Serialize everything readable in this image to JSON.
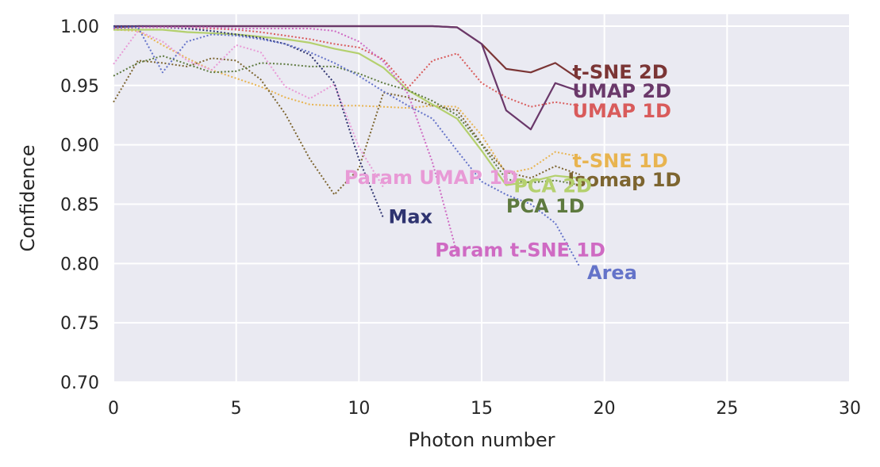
{
  "chart_data": {
    "type": "line",
    "title": "",
    "xlabel": "Photon number",
    "ylabel": "Confidence",
    "xlim": [
      0,
      30
    ],
    "ylim": [
      0.7,
      1.01
    ],
    "xticks": [
      0,
      5,
      10,
      15,
      20,
      25,
      30
    ],
    "yticks": [
      0.7,
      0.75,
      0.8,
      0.85,
      0.9,
      0.95,
      1.0
    ],
    "xtick_labels": [
      "0",
      "5",
      "10",
      "15",
      "20",
      "25",
      "30"
    ],
    "ytick_labels": [
      "0.70",
      "0.75",
      "0.80",
      "0.85",
      "0.90",
      "0.95",
      "1.00"
    ],
    "grid": true,
    "background": "#eaeaf2",
    "series": [
      {
        "name": "t-SNE 2D",
        "color": "#7b3535",
        "dash": "solid",
        "x": [
          0,
          1,
          2,
          3,
          4,
          5,
          6,
          7,
          8,
          9,
          10,
          11,
          12,
          13,
          14,
          15,
          16,
          17,
          18,
          19
        ],
        "y": [
          0.999,
          1.0,
          1.0,
          1.0,
          1.0,
          1.0,
          1.0,
          1.0,
          1.0,
          1.0,
          1.0,
          1.0,
          1.0,
          1.0,
          0.999,
          0.985,
          0.964,
          0.961,
          0.969,
          0.955
        ]
      },
      {
        "name": "UMAP 2D",
        "color": "#6a386a",
        "dash": "solid",
        "x": [
          0,
          1,
          2,
          3,
          4,
          5,
          6,
          7,
          8,
          9,
          10,
          11,
          12,
          13,
          14,
          15,
          16,
          17,
          18,
          19
        ],
        "y": [
          1.0,
          1.0,
          1.0,
          1.0,
          1.0,
          1.0,
          1.0,
          1.0,
          1.0,
          1.0,
          1.0,
          1.0,
          1.0,
          1.0,
          0.999,
          0.985,
          0.929,
          0.913,
          0.952,
          0.945
        ]
      },
      {
        "name": "UMAP 1D",
        "color": "#d95b5b",
        "dash": "dotted",
        "x": [
          0,
          1,
          2,
          3,
          4,
          5,
          6,
          7,
          8,
          9,
          10,
          11,
          12,
          13,
          14,
          15,
          16,
          17,
          18,
          19
        ],
        "y": [
          0.997,
          0.999,
          0.999,
          0.999,
          0.998,
          0.997,
          0.995,
          0.992,
          0.989,
          0.985,
          0.982,
          0.972,
          0.948,
          0.971,
          0.977,
          0.952,
          0.94,
          0.932,
          0.936,
          0.933
        ]
      },
      {
        "name": "t-SNE 1D",
        "color": "#e8b450",
        "dash": "dotted",
        "x": [
          0,
          1,
          2,
          3,
          4,
          5,
          6,
          7,
          8,
          9,
          10,
          11,
          12,
          13,
          14,
          15,
          16,
          17,
          18,
          19
        ],
        "y": [
          0.997,
          0.996,
          0.984,
          0.973,
          0.963,
          0.956,
          0.949,
          0.94,
          0.934,
          0.933,
          0.933,
          0.932,
          0.931,
          0.933,
          0.932,
          0.908,
          0.876,
          0.88,
          0.894,
          0.89
        ]
      },
      {
        "name": "Isomap 1D",
        "color": "#7d6530",
        "dash": "dotted",
        "x": [
          0,
          1,
          2,
          3,
          4,
          5,
          6,
          7,
          8,
          9,
          10,
          11,
          12,
          13,
          14,
          15,
          16,
          17,
          18,
          19
        ],
        "y": [
          0.936,
          0.971,
          0.969,
          0.966,
          0.973,
          0.971,
          0.955,
          0.926,
          0.888,
          0.858,
          0.88,
          0.944,
          0.94,
          0.933,
          0.929,
          0.901,
          0.877,
          0.872,
          0.882,
          0.875
        ]
      },
      {
        "name": "PCA 2D",
        "color": "#b4d06e",
        "dash": "solid",
        "x": [
          0,
          1,
          2,
          3,
          4,
          5,
          6,
          7,
          8,
          9,
          10,
          11,
          12,
          13,
          14,
          15,
          16,
          17,
          18,
          19
        ],
        "y": [
          0.997,
          0.997,
          0.997,
          0.995,
          0.994,
          0.993,
          0.991,
          0.989,
          0.986,
          0.981,
          0.977,
          0.965,
          0.946,
          0.934,
          0.922,
          0.895,
          0.866,
          0.869,
          0.874,
          0.872
        ]
      },
      {
        "name": "PCA 1D",
        "color": "#5e7a3f",
        "dash": "dotted",
        "x": [
          0,
          1,
          2,
          3,
          4,
          5,
          6,
          7,
          8,
          9,
          10,
          11,
          12,
          13,
          14,
          15,
          16,
          17,
          18,
          19
        ],
        "y": [
          0.958,
          0.969,
          0.975,
          0.968,
          0.961,
          0.962,
          0.969,
          0.968,
          0.966,
          0.966,
          0.96,
          0.952,
          0.946,
          0.937,
          0.925,
          0.9,
          0.871,
          0.868,
          0.87,
          0.866
        ]
      },
      {
        "name": "Param UMAP 1D",
        "color": "#e89ad6",
        "dash": "dotted",
        "x": [
          0,
          1,
          2,
          3,
          4,
          5,
          6,
          7,
          8,
          9,
          10,
          11
        ],
        "y": [
          0.968,
          0.996,
          0.987,
          0.971,
          0.963,
          0.984,
          0.978,
          0.949,
          0.939,
          0.951,
          0.898,
          0.864
        ]
      },
      {
        "name": "Max",
        "color": "#2e3370",
        "dash": "dotted",
        "x": [
          0,
          1,
          2,
          3,
          4,
          5,
          6,
          7,
          8,
          9,
          10,
          11
        ],
        "y": [
          1.0,
          1.0,
          0.999,
          0.998,
          0.996,
          0.993,
          0.99,
          0.985,
          0.976,
          0.952,
          0.888,
          0.838
        ]
      },
      {
        "name": "Param t-SNE 1D",
        "color": "#cf6ac3",
        "dash": "dotted",
        "x": [
          0,
          1,
          2,
          3,
          4,
          5,
          6,
          7,
          8,
          9,
          10,
          11,
          12,
          13,
          14
        ],
        "y": [
          0.998,
          0.999,
          0.999,
          0.999,
          0.999,
          0.998,
          0.998,
          0.998,
          0.998,
          0.996,
          0.987,
          0.97,
          0.943,
          0.885,
          0.808
        ]
      },
      {
        "name": "Area",
        "color": "#6473c9",
        "dash": "dotted",
        "x": [
          0,
          1,
          2,
          3,
          4,
          5,
          6,
          7,
          8,
          9,
          10,
          11,
          12,
          13,
          14,
          15,
          16,
          17,
          18,
          19
        ],
        "y": [
          0.999,
          0.999,
          0.961,
          0.987,
          0.993,
          0.992,
          0.989,
          0.985,
          0.978,
          0.969,
          0.958,
          0.945,
          0.933,
          0.922,
          0.895,
          0.869,
          0.858,
          0.85,
          0.834,
          0.797
        ]
      }
    ],
    "labels": [
      {
        "text": "t-SNE 2D",
        "series": "t-SNE 2D",
        "x": 18.7,
        "y": 0.962
      },
      {
        "text": "UMAP 2D",
        "series": "UMAP 2D",
        "x": 18.7,
        "y": 0.946
      },
      {
        "text": "UMAP 1D",
        "series": "UMAP 1D",
        "x": 18.7,
        "y": 0.929
      },
      {
        "text": "t-SNE 1D",
        "series": "t-SNE 1D",
        "x": 18.7,
        "y": 0.887
      },
      {
        "text": "Isomap 1D",
        "series": "Isomap 1D",
        "x": 18.5,
        "y": 0.871
      },
      {
        "text": "PCA 2D",
        "series": "PCA 2D",
        "x": 16.3,
        "y": 0.866
      },
      {
        "text": "PCA 1D",
        "series": "PCA 1D",
        "x": 16.0,
        "y": 0.849
      },
      {
        "text": "Param UMAP 1D",
        "series": "Param UMAP 1D",
        "x": 9.4,
        "y": 0.873
      },
      {
        "text": "Max",
        "series": "Max",
        "x": 11.2,
        "y": 0.84
      },
      {
        "text": "Param t-SNE 1D",
        "series": "Param t-SNE 1D",
        "x": 13.1,
        "y": 0.812
      },
      {
        "text": "Area",
        "series": "Area",
        "x": 19.3,
        "y": 0.793
      }
    ]
  }
}
